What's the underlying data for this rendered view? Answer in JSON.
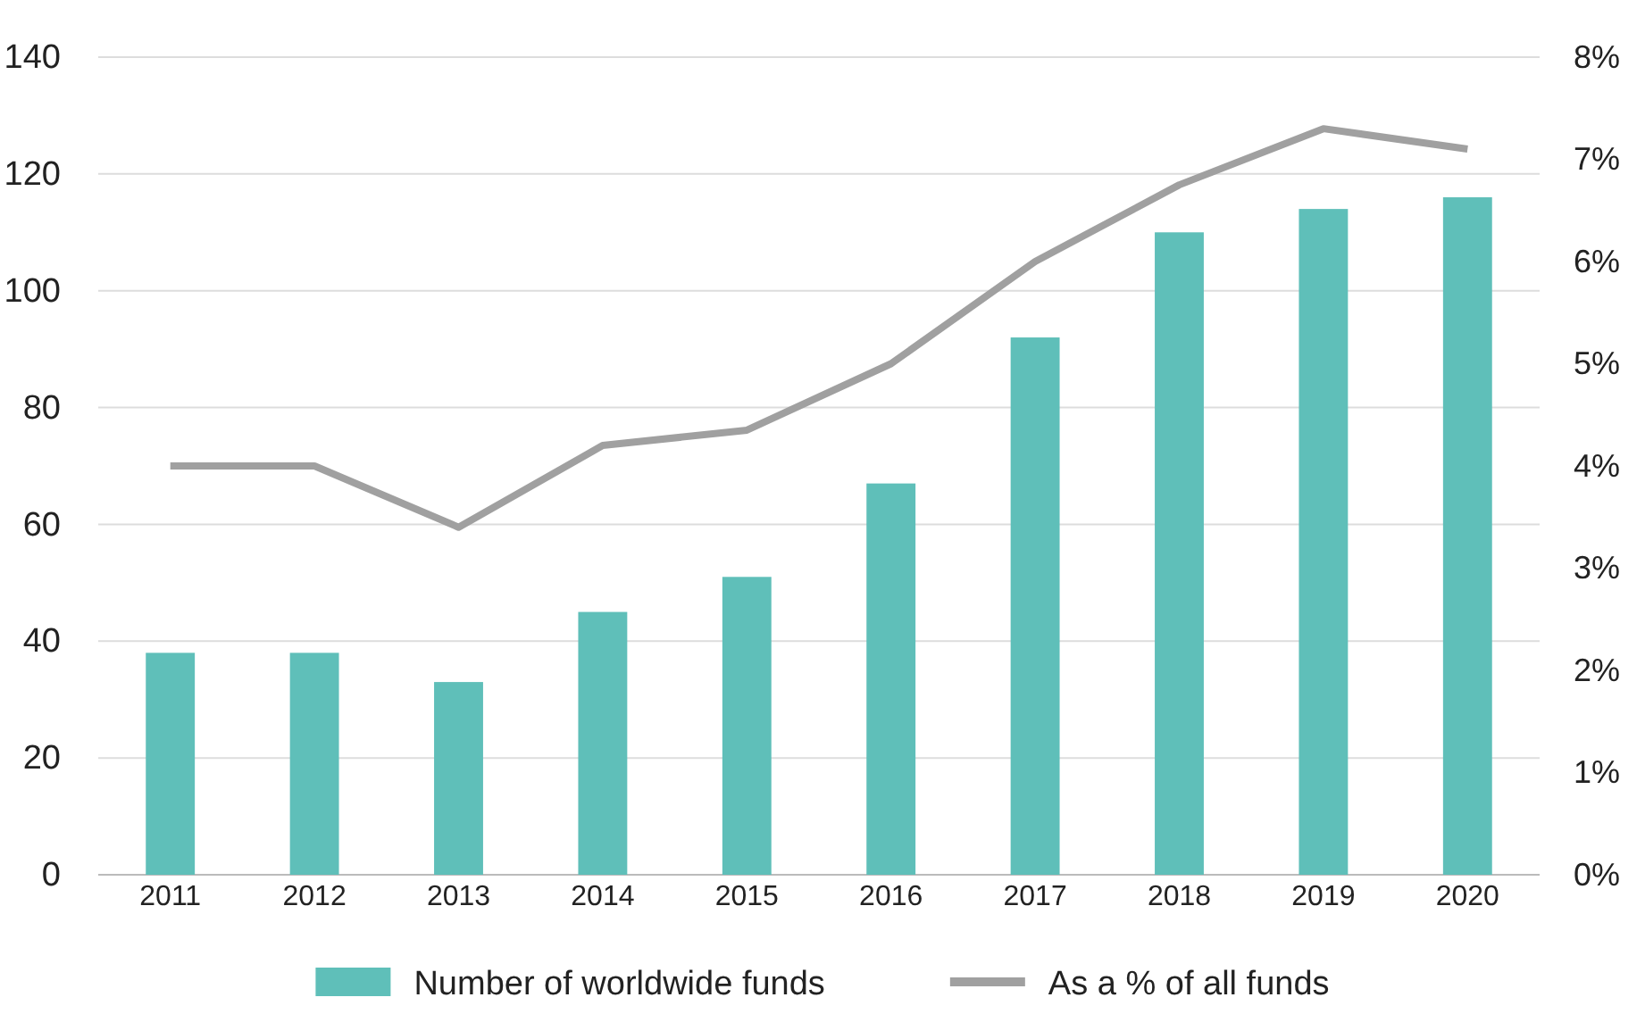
{
  "chart_data": {
    "type": "bar",
    "categories": [
      "2011",
      "2012",
      "2013",
      "2014",
      "2015",
      "2016",
      "2017",
      "2018",
      "2019",
      "2020"
    ],
    "series": [
      {
        "name": "Number of worldwide funds",
        "color": "#5fbfb9",
        "values": [
          38,
          38,
          33,
          45,
          51,
          67,
          92,
          110,
          114,
          116
        ]
      },
      {
        "name": "As a % of all funds",
        "type": "line",
        "axis": "y2",
        "color": "#a0a0a0",
        "values": [
          4.0,
          4.0,
          3.4,
          4.2,
          4.35,
          5.0,
          6.0,
          6.75,
          7.3,
          7.1
        ]
      }
    ],
    "ylim": [
      0,
      140
    ],
    "yticks": [
      0,
      20,
      40,
      60,
      80,
      100,
      120,
      140
    ],
    "y2lim": [
      0,
      8
    ],
    "y2ticks": [
      {
        "value": 0,
        "label": "0%"
      },
      {
        "value": 1,
        "label": "1%"
      },
      {
        "value": 2,
        "label": "2%"
      },
      {
        "value": 3,
        "label": "3%"
      },
      {
        "value": 4,
        "label": "4%"
      },
      {
        "value": 5,
        "label": "5%"
      },
      {
        "value": 6,
        "label": "6%"
      },
      {
        "value": 7,
        "label": "7%"
      },
      {
        "value": 8,
        "label": "8%"
      }
    ],
    "grid": "y",
    "legend": "bottom",
    "marker": "none",
    "line_style": "solid"
  }
}
